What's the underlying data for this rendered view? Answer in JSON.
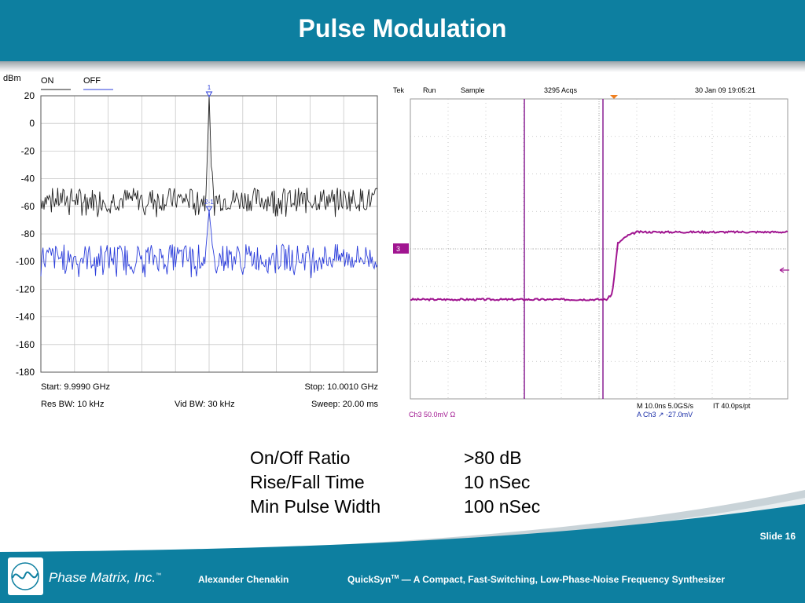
{
  "slide": {
    "title": "Pulse Modulation",
    "slide_number": "Slide 16"
  },
  "specs": [
    {
      "label": "On/Off Ratio",
      "value": ">80 dB"
    },
    {
      "label": "Rise/Fall Time",
      "value": "10 nSec"
    },
    {
      "label": "Min Pulse Width",
      "value": "100 nSec"
    }
  ],
  "footer": {
    "logo_text": "Phase Matrix, Inc.",
    "logo_tm": "™",
    "author": "Alexander Chenakin",
    "product_name": "QuickSyn",
    "product_tm": "TM",
    "product_rest": " — A Compact, Fast-Switching, Low-Phase-Noise Frequency Synthesizer"
  },
  "colors": {
    "header": "#0d7fa0",
    "on_trace": "#222222",
    "off_trace": "#2b3ddb",
    "scope_trace": "#a01590",
    "scope_grid": "#b9b9b9"
  },
  "chart_data": [
    {
      "type": "line",
      "ylabel": "dBm",
      "y_ticks": [
        20,
        0,
        -20,
        -40,
        -60,
        -80,
        -100,
        -120,
        -140,
        -160,
        -180
      ],
      "ylim": [
        -180,
        20
      ],
      "xlim_ghz": [
        9.999,
        10.001
      ],
      "grid": true,
      "legend": [
        "ON",
        "OFF"
      ],
      "markers": [
        {
          "label": "1",
          "series": "ON",
          "x_ghz": 10.0,
          "y": 20
        },
        {
          "label": "2-1",
          "series": "OFF",
          "x_ghz": 10.0,
          "y": -63
        }
      ],
      "series": [
        {
          "name": "ON",
          "noise_floor": -55,
          "noise_range": [
            -68,
            -45
          ],
          "peak": 20
        },
        {
          "name": "OFF",
          "noise_floor": -97,
          "noise_range": [
            -112,
            -86
          ],
          "peak": -63
        }
      ],
      "annotations": {
        "start": "Start: 9.9990 GHz",
        "stop": "Stop: 10.0010 GHz",
        "rbw": "Res BW: 10 kHz",
        "vbw": "Vid BW: 30 kHz",
        "sweep": "Sweep: 20.00 ms"
      }
    },
    {
      "type": "line",
      "grid": true,
      "grid_divisions": [
        10,
        8
      ],
      "status": {
        "brand": "Tek",
        "run": "Run",
        "mode": "Sample",
        "acqs": "3295 Acqs",
        "date": "30 Jan 09 19:05:21"
      },
      "channel_marker": "3",
      "horizontal_readout": "M 10.0ns 5.0GS/s",
      "interp_readout": "IT 40.0ps/pt",
      "trigger_readout": "A  Ch3  ↗  -27.0mV",
      "channel_readout": "Ch3     50.0mV  Ω",
      "series": [
        {
          "name": "Ch3",
          "x_div": [
            0,
            5.2,
            5.35,
            5.5,
            5.75,
            6.0,
            10
          ],
          "y_div": [
            -1.35,
            -1.35,
            -1.2,
            0.15,
            0.35,
            0.45,
            0.45
          ]
        }
      ]
    }
  ]
}
